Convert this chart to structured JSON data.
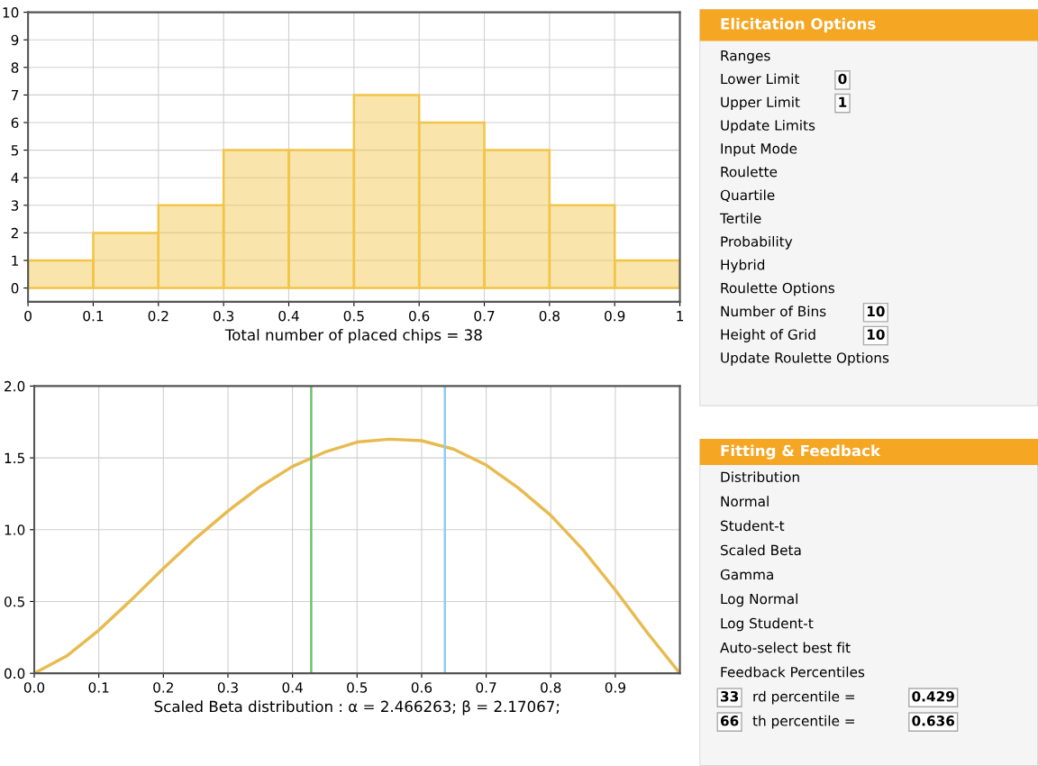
{
  "chart_data": [
    {
      "type": "histogram",
      "xlabel": "Total number of placed chips = 38",
      "bins": [
        0,
        0.1,
        0.2,
        0.3,
        0.4,
        0.5,
        0.6,
        0.7,
        0.8,
        0.9,
        1
      ],
      "values": [
        1,
        2,
        3,
        5,
        5,
        7,
        6,
        5,
        3,
        1
      ],
      "color": "#f2c548",
      "xlim": [
        0,
        1
      ],
      "xticks": [
        0,
        0.1,
        0.2,
        0.3,
        0.4,
        0.5,
        0.6,
        0.7,
        0.8,
        0.9,
        1
      ],
      "ylim": [
        -0.5,
        10
      ],
      "yticks": [
        0,
        1,
        2,
        3,
        4,
        5,
        6,
        7,
        8,
        9,
        10
      ],
      "grid": true
    },
    {
      "type": "line",
      "xlabel": "Scaled Beta distribution : α = 2.466263; β = 2.17067;",
      "x": [
        0,
        0.05,
        0.1,
        0.15,
        0.2,
        0.25,
        0.3,
        0.35,
        0.4,
        0.45,
        0.5,
        0.55,
        0.6,
        0.65,
        0.7,
        0.75,
        0.8,
        0.85,
        0.9,
        0.95,
        1
      ],
      "series": [
        {
          "color": "#e8bb50",
          "values": [
            0,
            0.12,
            0.3,
            0.51,
            0.73,
            0.94,
            1.13,
            1.3,
            1.44,
            1.54,
            1.61,
            1.63,
            1.62,
            1.56,
            1.45,
            1.29,
            1.1,
            0.86,
            0.58,
            0.28,
            0
          ]
        }
      ],
      "xlim": [
        0,
        1
      ],
      "xticks": [
        {
          "value": 0,
          "label": "0.0"
        },
        0.1,
        0.2,
        0.3,
        0.4,
        0.5,
        0.6,
        0.7,
        0.8,
        0.9
      ],
      "ylim": [
        0,
        2
      ],
      "yticks": [
        {
          "value": 0,
          "label": "0.0"
        },
        0.5,
        {
          "value": 1,
          "label": "1.0"
        },
        1.5,
        {
          "value": 2,
          "label": "2.0"
        }
      ],
      "grid": true,
      "marker": "none",
      "line_style": "solid",
      "ref_lines": [
        {
          "axis": "x",
          "value": 0.429,
          "color": "#6cc36c"
        },
        {
          "axis": "x",
          "value": 0.636,
          "color": "#8fcdf2"
        }
      ]
    },
    {
      "type": "other",
      "title": "Elicitation Options",
      "annotations": [
        "Ranges",
        "Lower Limit",
        "0",
        "Upper Limit",
        "1",
        "Update Limits",
        "Input Mode",
        "Roulette",
        "Quartile",
        "Tertile",
        "Probability",
        "Hybrid",
        "Roulette Options",
        "Number of Bins",
        "10",
        "Height of Grid",
        "10",
        "Update Roulette Options"
      ]
    },
    {
      "type": "other",
      "title": "Fitting & Feedback",
      "annotations": [
        "Distribution",
        "Normal",
        "Student-t",
        "Scaled Beta",
        "Gamma",
        "Log Normal",
        "Log Student-t",
        "Auto-select best fit",
        "Feedback Percentiles",
        "33",
        "rd percentile =",
        "0.429",
        "66",
        "th percentile =",
        "0.636"
      ]
    }
  ]
}
